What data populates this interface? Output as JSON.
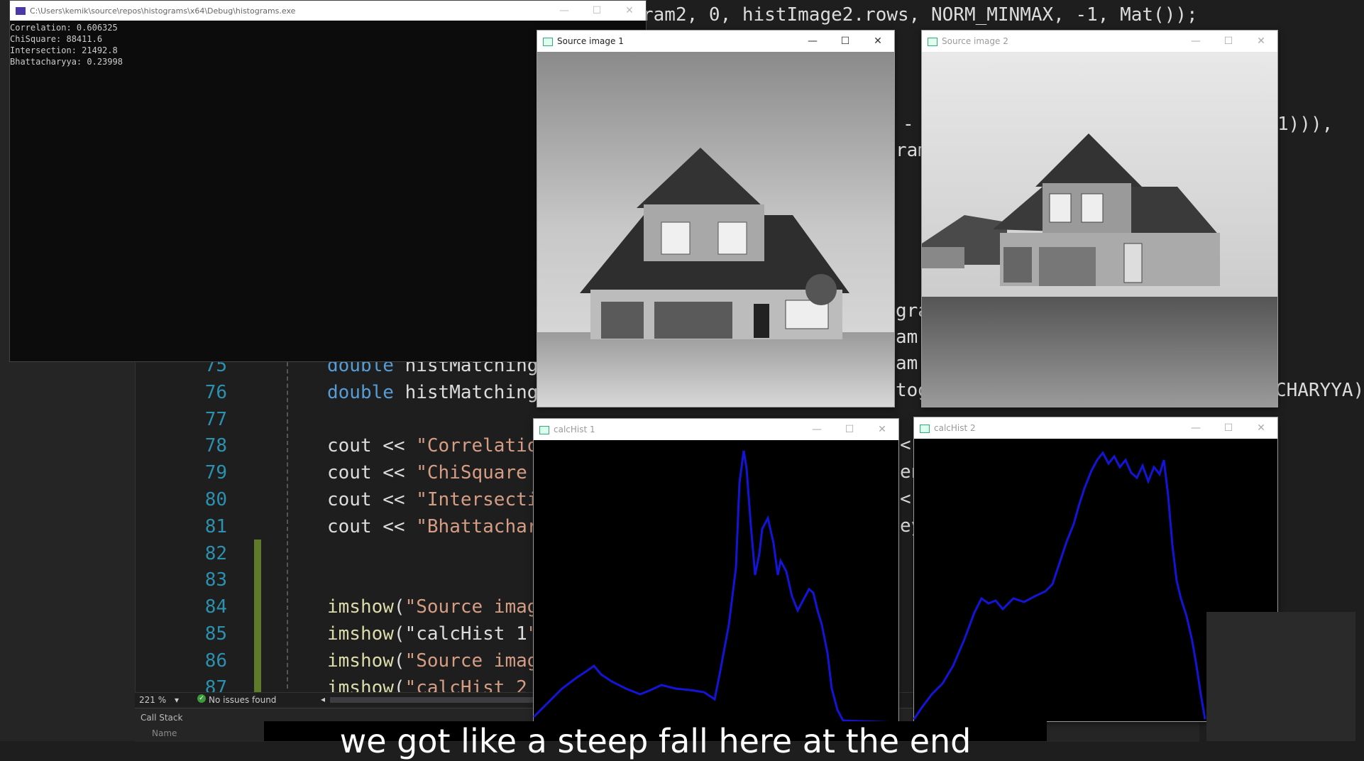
{
  "console": {
    "title": "C:\\Users\\kemik\\source\\repos\\histograms\\x64\\Debug\\histograms.exe",
    "lines": [
      "Correlation: 0.606325",
      "ChiSquare: 88411.6",
      "Intersection: 21492.8",
      "Bhattacharyya: 0.23998"
    ]
  },
  "code": {
    "top_snippet": "ram2, 0, histImage2.rows, NORM_MINMAX, -1, Mat());",
    "right_snippets": {
      "r1": "-",
      "r2": "ram",
      "r3": "gra",
      "r4": "am,",
      "r5": "am,",
      "r6": "tog",
      "r7": "<",
      "r8": "en",
      "r9": "<",
      "r10": "ey",
      "far1": "1))),",
      "far2": "CHARYYA)"
    },
    "lines": [
      {
        "num": "75",
        "text": "double histMatching"
      },
      {
        "num": "76",
        "text": "double histMatching"
      },
      {
        "num": "77",
        "text": ""
      },
      {
        "num": "78",
        "text": "cout << \"Correlatio"
      },
      {
        "num": "79",
        "text": "cout << \"ChiSquare"
      },
      {
        "num": "80",
        "text": "cout << \"Intersecti"
      },
      {
        "num": "81",
        "text": "cout << \"Bhattachar"
      },
      {
        "num": "82",
        "text": ""
      },
      {
        "num": "83",
        "text": ""
      },
      {
        "num": "84",
        "text": "imshow(\"Source imag"
      },
      {
        "num": "85",
        "text": "imshow(\"calcHist 1\""
      },
      {
        "num": "86",
        "text": "imshow(\"Source imag"
      },
      {
        "num": "87",
        "text": "imshow(\"calcHist 2"
      }
    ]
  },
  "status": {
    "zoom": "221 %",
    "issues": "No issues found"
  },
  "callstack": {
    "title": "Call Stack",
    "col": "Name"
  },
  "windows": {
    "src1": "Source image 1",
    "src2": "Source image 2",
    "hist1": "calcHist 1",
    "hist2": "calcHist 2"
  },
  "caption": "we got like a steep fall here at the end",
  "colors": {
    "hist_line": "#1414d8"
  }
}
